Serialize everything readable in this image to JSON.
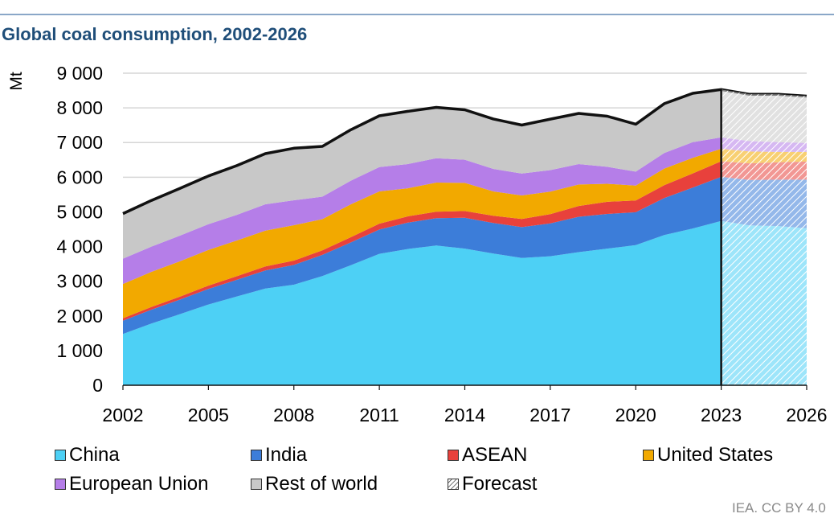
{
  "page": {
    "title": "Global coal consumption, 2002-2026",
    "source": "IEA. CC BY 4.0"
  },
  "chart_data": {
    "type": "area",
    "stacked": true,
    "ylabel": "Mt",
    "ylim": [
      0,
      9000
    ],
    "yticks": [
      0,
      1000,
      2000,
      3000,
      4000,
      5000,
      6000,
      7000,
      8000,
      9000
    ],
    "ytick_labels": [
      "0",
      "1 000",
      "2 000",
      "3 000",
      "4 000",
      "5 000",
      "6 000",
      "7 000",
      "8 000",
      "9 000"
    ],
    "x": [
      2002,
      2003,
      2004,
      2005,
      2006,
      2007,
      2008,
      2009,
      2010,
      2011,
      2012,
      2013,
      2014,
      2015,
      2016,
      2017,
      2018,
      2019,
      2020,
      2021,
      2022,
      2023,
      2024,
      2025,
      2026
    ],
    "xticks": [
      2002,
      2005,
      2008,
      2011,
      2014,
      2017,
      2020,
      2023,
      2026
    ],
    "forecast_from": 2023,
    "grid": "horizontal",
    "legend_position": "bottom",
    "series": [
      {
        "name": "China",
        "color": "#4dd0f5",
        "values": [
          1480,
          1780,
          2050,
          2330,
          2560,
          2790,
          2900,
          3150,
          3460,
          3790,
          3930,
          4030,
          3940,
          3800,
          3670,
          3720,
          3840,
          3940,
          4040,
          4330,
          4520,
          4740,
          4610,
          4590,
          4530
        ]
      },
      {
        "name": "India",
        "color": "#3c7dd9",
        "values": [
          380,
          400,
          420,
          450,
          480,
          520,
          570,
          610,
          660,
          700,
          760,
          790,
          890,
          880,
          890,
          950,
          1020,
          1000,
          950,
          1070,
          1180,
          1270,
          1310,
          1340,
          1400
        ]
      },
      {
        "name": "ASEAN",
        "color": "#e8413c",
        "values": [
          70,
          80,
          85,
          95,
          105,
          115,
          125,
          130,
          150,
          170,
          180,
          185,
          195,
          210,
          235,
          265,
          310,
          350,
          340,
          370,
          410,
          450,
          480,
          500,
          520
        ]
      },
      {
        "name": "United States",
        "color": "#f2a900",
        "values": [
          990,
          1010,
          1020,
          1030,
          1030,
          1035,
          1020,
          900,
          950,
          930,
          810,
          840,
          810,
          700,
          680,
          650,
          620,
          520,
          430,
          480,
          450,
          360,
          340,
          300,
          280
        ]
      },
      {
        "name": "European Union",
        "color": "#b57ee8",
        "values": [
          730,
          730,
          740,
          740,
          740,
          760,
          720,
          650,
          680,
          700,
          700,
          700,
          670,
          650,
          630,
          620,
          590,
          490,
          400,
          450,
          450,
          330,
          300,
          280,
          260
        ]
      },
      {
        "name": "Rest of world",
        "color": "#c8c8c8",
        "values": [
          1300,
          1330,
          1360,
          1390,
          1420,
          1460,
          1500,
          1450,
          1470,
          1480,
          1520,
          1470,
          1440,
          1440,
          1400,
          1470,
          1460,
          1460,
          1370,
          1420,
          1410,
          1380,
          1350,
          1380,
          1350
        ]
      }
    ]
  },
  "legend": {
    "items": [
      {
        "label": "China",
        "color": "#4dd0f5",
        "pattern": "solid"
      },
      {
        "label": "India",
        "color": "#3c7dd9",
        "pattern": "solid"
      },
      {
        "label": "ASEAN",
        "color": "#e8413c",
        "pattern": "solid"
      },
      {
        "label": "United States",
        "color": "#f2a900",
        "pattern": "solid"
      },
      {
        "label": "European Union",
        "color": "#b57ee8",
        "pattern": "solid"
      },
      {
        "label": "Rest of world",
        "color": "#c8c8c8",
        "pattern": "solid"
      },
      {
        "label": "Forecast",
        "color": "#ffffff",
        "pattern": "hatch"
      }
    ]
  }
}
